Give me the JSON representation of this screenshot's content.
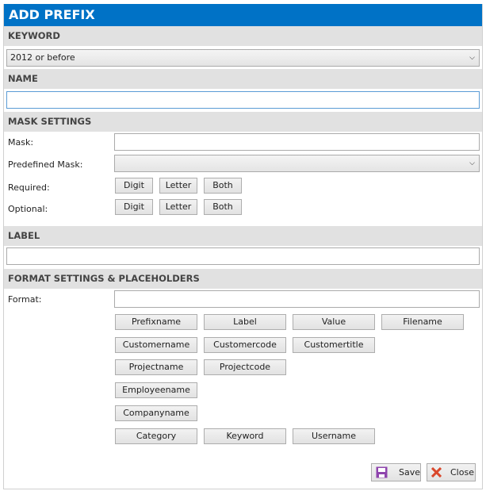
{
  "title": "ADD PREFIX",
  "keyword": {
    "header": "KEYWORD",
    "selected": "2012 or before"
  },
  "name": {
    "header": "NAME",
    "value": ""
  },
  "mask": {
    "header": "MASK SETTINGS",
    "mask_label": "Mask:",
    "predefined_label": "Predefined Mask:",
    "predefined_value": "",
    "required_label": "Required:",
    "optional_label": "Optional:",
    "buttons": [
      "Digit",
      "Letter",
      "Both"
    ]
  },
  "label": {
    "header": "LABEL",
    "value": ""
  },
  "format": {
    "header": "FORMAT SETTINGS & PLACEHOLDERS",
    "format_label": "Format:",
    "value": "",
    "placeholders": [
      [
        "Prefixname",
        "Label",
        "Value",
        "Filename"
      ],
      [
        "Customername",
        "Customercode",
        "Customertitle"
      ],
      [
        "Projectname",
        "Projectcode"
      ],
      [
        "Employeename"
      ],
      [
        "Companyname"
      ],
      [
        "Category",
        "Keyword",
        "Username"
      ]
    ]
  },
  "actions": {
    "save": "Save",
    "close": "Close"
  },
  "colors": {
    "title_bar": "#0072c6",
    "header_bg": "#e1e1e1",
    "save_icon": "#8e44ad",
    "close_icon": "#d9472b"
  },
  "icons": {
    "save": "floppy-disk-icon",
    "close": "x-icon",
    "dropdown": "chevron-down-icon"
  }
}
